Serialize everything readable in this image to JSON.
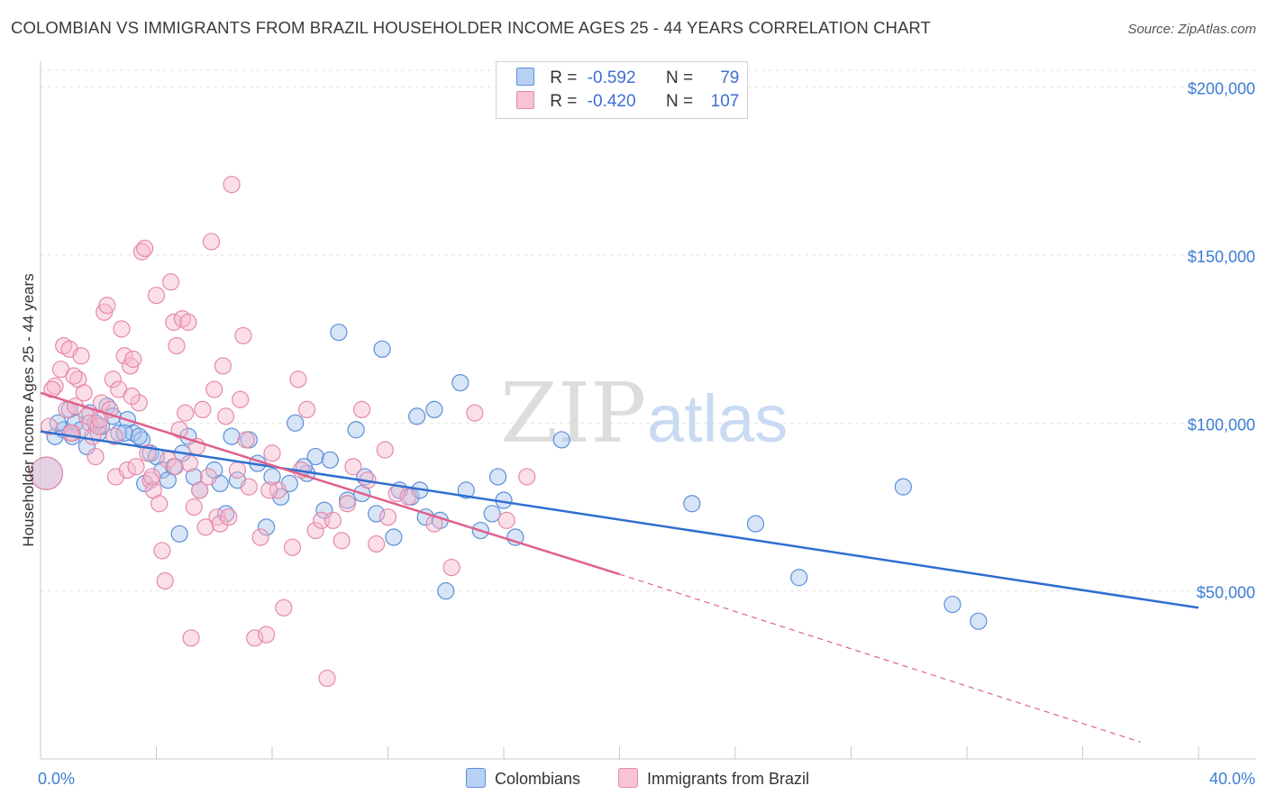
{
  "title": "COLOMBIAN VS IMMIGRANTS FROM BRAZIL HOUSEHOLDER INCOME AGES 25 - 44 YEARS CORRELATION CHART",
  "source": "Source: ZipAtlas.com",
  "watermark": {
    "zip": "ZIP",
    "atlas": "atlas"
  },
  "legend": {
    "rows": [
      {
        "r_label": "R =",
        "r_value": "-0.592",
        "n_label": "N =",
        "n_value": "79"
      },
      {
        "r_label": "R =",
        "r_value": "-0.420",
        "n_label": "N =",
        "n_value": "107"
      }
    ]
  },
  "bottom_legend": [
    "Colombians",
    "Immigrants from Brazil"
  ],
  "colors": {
    "blue_fill": "#a9c6ee",
    "blue_stroke": "#5b8fd9",
    "blue_line": "#2f6fd0",
    "pink_fill": "#f7b8cc",
    "pink_stroke": "#e689a8",
    "pink_line": "#e0608c",
    "axis_text": "#3d7dd4"
  },
  "chart_data": {
    "type": "scatter",
    "xlabel": "",
    "ylabel": "Householder Income Ages 25 - 44 years",
    "x_range": [
      0,
      40
    ],
    "y_range": [
      0,
      205000
    ],
    "x_tick_labels": [
      "0.0%",
      "40.0%"
    ],
    "y_ticks": [
      {
        "value": 50000,
        "label": "$50,000"
      },
      {
        "value": 100000,
        "label": "$100,000"
      },
      {
        "value": 150000,
        "label": "$150,000"
      },
      {
        "value": 200000,
        "label": "$200,000"
      }
    ],
    "grid": true,
    "series": [
      {
        "name": "Colombians",
        "color": "#a9c6ee",
        "trend": {
          "x0": 0,
          "y0": 97500,
          "x1": 40,
          "y1": 45000,
          "dashed_to": null
        },
        "points": [
          [
            0.2,
            85000
          ],
          [
            0.5,
            96000
          ],
          [
            0.8,
            98000
          ],
          [
            1.0,
            104000
          ],
          [
            1.2,
            100000
          ],
          [
            1.4,
            98000
          ],
          [
            1.6,
            93000
          ],
          [
            1.7,
            103000
          ],
          [
            1.9,
            100000
          ],
          [
            2.0,
            97000
          ],
          [
            2.3,
            105000
          ],
          [
            2.5,
            102000
          ],
          [
            2.7,
            97000
          ],
          [
            3.0,
            101000
          ],
          [
            3.2,
            97000
          ],
          [
            3.5,
            95000
          ],
          [
            3.6,
            82000
          ],
          [
            3.8,
            91000
          ],
          [
            4.0,
            90000
          ],
          [
            4.2,
            86000
          ],
          [
            4.4,
            83000
          ],
          [
            4.6,
            87000
          ],
          [
            4.8,
            67000
          ],
          [
            5.1,
            96000
          ],
          [
            5.3,
            84000
          ],
          [
            5.5,
            80000
          ],
          [
            6.2,
            82000
          ],
          [
            6.4,
            73000
          ],
          [
            6.6,
            96000
          ],
          [
            6.8,
            83000
          ],
          [
            7.2,
            95000
          ],
          [
            7.5,
            88000
          ],
          [
            7.8,
            69000
          ],
          [
            8.0,
            84000
          ],
          [
            8.3,
            78000
          ],
          [
            8.6,
            82000
          ],
          [
            8.8,
            100000
          ],
          [
            9.2,
            85000
          ],
          [
            9.5,
            90000
          ],
          [
            9.8,
            74000
          ],
          [
            10.0,
            89000
          ],
          [
            10.3,
            127000
          ],
          [
            10.6,
            77000
          ],
          [
            10.9,
            98000
          ],
          [
            11.2,
            84000
          ],
          [
            11.6,
            73000
          ],
          [
            11.8,
            122000
          ],
          [
            12.2,
            66000
          ],
          [
            12.4,
            80000
          ],
          [
            12.8,
            78000
          ],
          [
            13.0,
            102000
          ],
          [
            13.3,
            72000
          ],
          [
            13.6,
            104000
          ],
          [
            13.8,
            71000
          ],
          [
            14.0,
            50000
          ],
          [
            14.5,
            112000
          ],
          [
            14.7,
            80000
          ],
          [
            15.2,
            68000
          ],
          [
            15.6,
            73000
          ],
          [
            15.8,
            84000
          ],
          [
            16.0,
            77000
          ],
          [
            16.4,
            66000
          ],
          [
            18.0,
            95000
          ],
          [
            22.5,
            76000
          ],
          [
            24.7,
            70000
          ],
          [
            26.2,
            54000
          ],
          [
            29.8,
            81000
          ],
          [
            31.5,
            46000
          ],
          [
            32.4,
            41000
          ],
          [
            0.6,
            100000
          ],
          [
            1.1,
            96000
          ],
          [
            2.1,
            99000
          ],
          [
            3.4,
            96000
          ],
          [
            4.9,
            91000
          ],
          [
            6.0,
            86000
          ],
          [
            9.1,
            87000
          ],
          [
            11.1,
            79000
          ],
          [
            13.1,
            80000
          ],
          [
            2.9,
            97000
          ]
        ]
      },
      {
        "name": "Immigrants from Brazil",
        "color": "#f7b8cc",
        "trend": {
          "x0": 0,
          "y0": 109000,
          "x1": 20,
          "y1": 55000,
          "dashed_to": {
            "x": 38,
            "y": 5000
          }
        },
        "points": [
          [
            0.2,
            85000
          ],
          [
            0.3,
            99000
          ],
          [
            0.5,
            111000
          ],
          [
            0.7,
            116000
          ],
          [
            0.8,
            123000
          ],
          [
            0.9,
            104000
          ],
          [
            1.0,
            122000
          ],
          [
            1.1,
            97000
          ],
          [
            1.2,
            105000
          ],
          [
            1.3,
            113000
          ],
          [
            1.4,
            120000
          ],
          [
            1.5,
            109000
          ],
          [
            1.6,
            102000
          ],
          [
            1.7,
            100000
          ],
          [
            1.8,
            96000
          ],
          [
            1.9,
            90000
          ],
          [
            2.0,
            99000
          ],
          [
            2.1,
            106000
          ],
          [
            2.2,
            133000
          ],
          [
            2.3,
            135000
          ],
          [
            2.4,
            104000
          ],
          [
            2.5,
            113000
          ],
          [
            2.6,
            84000
          ],
          [
            2.7,
            110000
          ],
          [
            2.8,
            128000
          ],
          [
            2.9,
            120000
          ],
          [
            3.0,
            86000
          ],
          [
            3.1,
            117000
          ],
          [
            3.2,
            119000
          ],
          [
            3.3,
            87000
          ],
          [
            3.4,
            106000
          ],
          [
            3.5,
            151000
          ],
          [
            3.6,
            152000
          ],
          [
            3.7,
            91000
          ],
          [
            3.8,
            83000
          ],
          [
            3.9,
            80000
          ],
          [
            4.0,
            138000
          ],
          [
            4.1,
            76000
          ],
          [
            4.2,
            62000
          ],
          [
            4.3,
            53000
          ],
          [
            4.4,
            89000
          ],
          [
            4.5,
            142000
          ],
          [
            4.6,
            130000
          ],
          [
            4.7,
            123000
          ],
          [
            4.8,
            98000
          ],
          [
            4.9,
            131000
          ],
          [
            5.0,
            103000
          ],
          [
            5.1,
            130000
          ],
          [
            5.2,
            36000
          ],
          [
            5.3,
            75000
          ],
          [
            5.4,
            93000
          ],
          [
            5.5,
            80000
          ],
          [
            5.6,
            104000
          ],
          [
            5.7,
            69000
          ],
          [
            5.8,
            84000
          ],
          [
            5.9,
            154000
          ],
          [
            6.0,
            110000
          ],
          [
            6.1,
            72000
          ],
          [
            6.2,
            70000
          ],
          [
            6.3,
            117000
          ],
          [
            6.5,
            72000
          ],
          [
            6.6,
            171000
          ],
          [
            6.8,
            86000
          ],
          [
            6.9,
            107000
          ],
          [
            7.0,
            126000
          ],
          [
            7.2,
            81000
          ],
          [
            7.4,
            36000
          ],
          [
            7.6,
            66000
          ],
          [
            7.8,
            37000
          ],
          [
            8.0,
            91000
          ],
          [
            8.2,
            80000
          ],
          [
            8.4,
            45000
          ],
          [
            8.7,
            63000
          ],
          [
            8.9,
            113000
          ],
          [
            9.2,
            104000
          ],
          [
            9.5,
            68000
          ],
          [
            9.7,
            71000
          ],
          [
            9.9,
            24000
          ],
          [
            10.1,
            71000
          ],
          [
            10.4,
            65000
          ],
          [
            10.8,
            87000
          ],
          [
            11.1,
            104000
          ],
          [
            11.3,
            83000
          ],
          [
            11.6,
            64000
          ],
          [
            11.9,
            92000
          ],
          [
            12.3,
            79000
          ],
          [
            12.7,
            78000
          ],
          [
            14.2,
            57000
          ],
          [
            15.0,
            103000
          ],
          [
            16.1,
            71000
          ],
          [
            16.8,
            84000
          ],
          [
            0.4,
            110000
          ],
          [
            1.15,
            114000
          ],
          [
            2.05,
            101000
          ],
          [
            2.55,
            96000
          ],
          [
            3.15,
            108000
          ],
          [
            3.85,
            84000
          ],
          [
            4.65,
            87000
          ],
          [
            5.15,
            88000
          ],
          [
            6.4,
            102000
          ],
          [
            7.1,
            95000
          ],
          [
            7.9,
            80000
          ],
          [
            9.0,
            86000
          ],
          [
            10.6,
            76000
          ],
          [
            12.0,
            72000
          ],
          [
            13.6,
            70000
          ],
          [
            1.05,
            97000
          ]
        ]
      }
    ]
  }
}
